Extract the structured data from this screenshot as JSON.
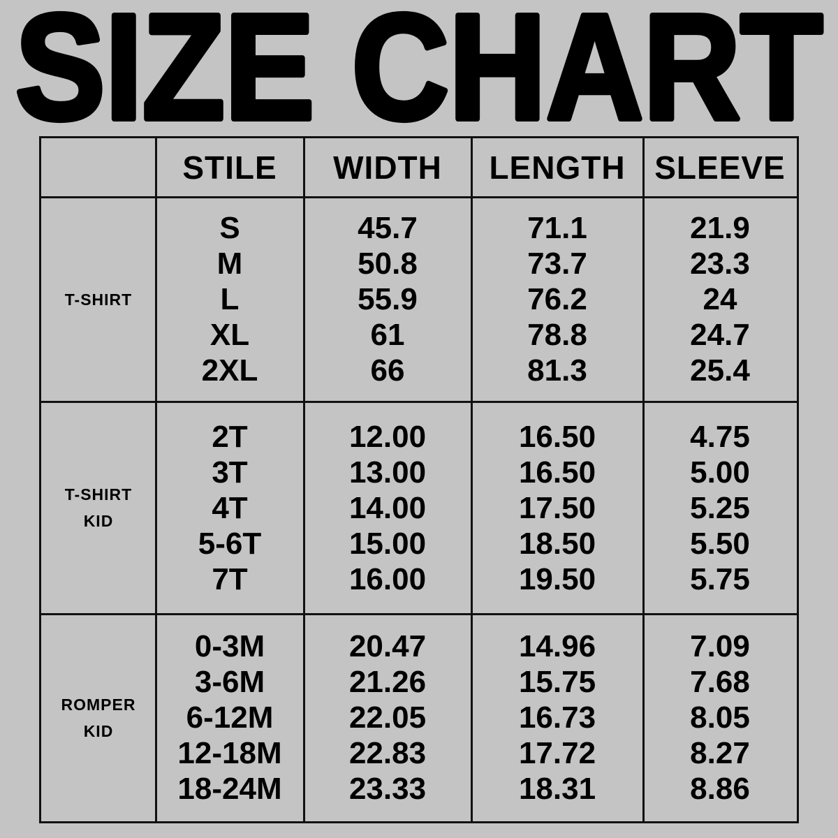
{
  "title": "SIZE CHART",
  "headers": [
    "",
    "STILE",
    "WIDTH",
    "LENGTH",
    "SLEEVE"
  ],
  "groups": [
    {
      "label": [
        "T-SHIRT"
      ],
      "stile": [
        "S",
        "M",
        "L",
        "XL",
        "2XL"
      ],
      "width": [
        "45.7",
        "50.8",
        "55.9",
        "61",
        "66"
      ],
      "length": [
        "71.1",
        "73.7",
        "76.2",
        "78.8",
        "81.3"
      ],
      "sleeve": [
        "21.9",
        "23.3",
        "24",
        "24.7",
        "25.4"
      ]
    },
    {
      "label": [
        "T-SHIRT",
        "KID"
      ],
      "stile": [
        "2T",
        "3T",
        "4T",
        "5-6T",
        "7T"
      ],
      "width": [
        "12.00",
        "13.00",
        "14.00",
        "15.00",
        "16.00"
      ],
      "length": [
        "16.50",
        "16.50",
        "17.50",
        "18.50",
        "19.50"
      ],
      "sleeve": [
        "4.75",
        "5.00",
        "5.25",
        "5.50",
        "5.75"
      ]
    },
    {
      "label": [
        "ROMPER",
        "KID"
      ],
      "stile": [
        "0-3M",
        "3-6M",
        "6-12M",
        "12-18M",
        "18-24M"
      ],
      "width": [
        "20.47",
        "21.26",
        "22.05",
        "22.83",
        "23.33"
      ],
      "length": [
        "14.96",
        "15.75",
        "16.73",
        "17.72",
        "18.31"
      ],
      "sleeve": [
        "7.09",
        "7.68",
        "8.05",
        "8.27",
        "8.86"
      ]
    }
  ],
  "colors": {
    "background": "#c4c4c4",
    "text": "#000000",
    "border": "#111111"
  }
}
